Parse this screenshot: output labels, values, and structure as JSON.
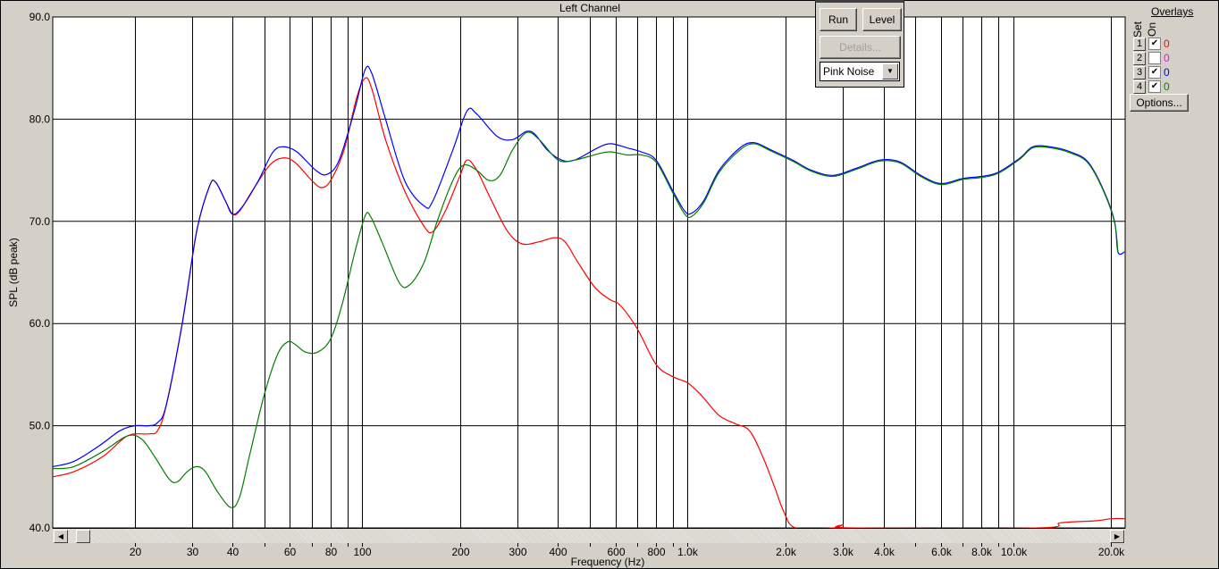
{
  "window": {
    "title": "Left Channel"
  },
  "controls": {
    "run_label": "Run",
    "level_label": "Level",
    "details_label": "Details...",
    "signal_select": "Pink Noise"
  },
  "overlays": {
    "header": "Overlays",
    "set_label": "Set",
    "on_label": "On",
    "options_label": "Options...",
    "rows": [
      {
        "set": "1",
        "on": true,
        "value": "0",
        "color": "#ff0000"
      },
      {
        "set": "2",
        "on": false,
        "value": "0",
        "color": "#ff00ff"
      },
      {
        "set": "3",
        "on": true,
        "value": "0",
        "color": "#0000ff"
      },
      {
        "set": "4",
        "on": true,
        "value": "0",
        "color": "#008000"
      }
    ]
  },
  "chart_data": {
    "type": "line",
    "title": "Left Channel",
    "xlabel": "Frequency (Hz)",
    "ylabel": "SPL (dB peak)",
    "x_scale": "log",
    "xlim": [
      11.2,
      22100
    ],
    "ylim": [
      40,
      90
    ],
    "grid": true,
    "y_ticks": [
      "90.0",
      "80.0",
      "70.0",
      "60.0",
      "50.0",
      "40.0"
    ],
    "x_ticks": [
      {
        "value": 20,
        "label": "20"
      },
      {
        "value": 30,
        "label": "30"
      },
      {
        "value": 40,
        "label": "40"
      },
      {
        "value": 50,
        "label": ""
      },
      {
        "value": 60,
        "label": "60"
      },
      {
        "value": 70,
        "label": ""
      },
      {
        "value": 80,
        "label": "80"
      },
      {
        "value": 90,
        "label": ""
      },
      {
        "value": 100,
        "label": "100"
      },
      {
        "value": 200,
        "label": "200"
      },
      {
        "value": 300,
        "label": "300"
      },
      {
        "value": 400,
        "label": "400"
      },
      {
        "value": 500,
        "label": ""
      },
      {
        "value": 600,
        "label": "600"
      },
      {
        "value": 700,
        "label": ""
      },
      {
        "value": 800,
        "label": "800"
      },
      {
        "value": 900,
        "label": ""
      },
      {
        "value": 1000,
        "label": "1.0k"
      },
      {
        "value": 2000,
        "label": "2.0k"
      },
      {
        "value": 3000,
        "label": "3.0k"
      },
      {
        "value": 4000,
        "label": "4.0k"
      },
      {
        "value": 5000,
        "label": ""
      },
      {
        "value": 6000,
        "label": "6.0k"
      },
      {
        "value": 7000,
        "label": ""
      },
      {
        "value": 8000,
        "label": "8.0k"
      },
      {
        "value": 9000,
        "label": ""
      },
      {
        "value": 10000,
        "label": "10.0k"
      },
      {
        "value": 20000,
        "label": "20.0k"
      }
    ],
    "series": [
      {
        "set": "1",
        "color": "#ff0000",
        "points": [
          [
            11.2,
            45
          ],
          [
            13,
            45.5
          ],
          [
            16,
            47
          ],
          [
            19,
            49
          ],
          [
            22,
            49.2
          ],
          [
            23.5,
            49.5
          ],
          [
            25,
            52
          ],
          [
            28,
            60
          ],
          [
            31,
            69
          ],
          [
            34,
            73.5
          ],
          [
            35.5,
            73.8
          ],
          [
            38,
            72
          ],
          [
            40,
            70.7
          ],
          [
            42,
            71
          ],
          [
            46,
            73
          ],
          [
            52,
            75.5
          ],
          [
            57,
            76.2
          ],
          [
            62,
            75.8
          ],
          [
            70,
            74
          ],
          [
            75,
            73.3
          ],
          [
            80,
            74
          ],
          [
            88,
            77
          ],
          [
            96,
            82
          ],
          [
            102,
            84
          ],
          [
            107,
            83
          ],
          [
            118,
            78
          ],
          [
            135,
            73
          ],
          [
            155,
            69.5
          ],
          [
            165,
            69
          ],
          [
            180,
            71
          ],
          [
            200,
            74.5
          ],
          [
            210,
            76
          ],
          [
            225,
            75
          ],
          [
            250,
            72
          ],
          [
            280,
            69
          ],
          [
            310,
            67.8
          ],
          [
            350,
            68
          ],
          [
            390,
            68.4
          ],
          [
            420,
            68
          ],
          [
            460,
            66
          ],
          [
            520,
            63.5
          ],
          [
            580,
            62.3
          ],
          [
            620,
            61.8
          ],
          [
            700,
            59.5
          ],
          [
            800,
            56
          ],
          [
            900,
            54.8
          ],
          [
            1000,
            54.2
          ],
          [
            1100,
            53
          ],
          [
            1250,
            51
          ],
          [
            1400,
            50.2
          ],
          [
            1550,
            49.5
          ],
          [
            1700,
            47
          ],
          [
            1850,
            44
          ],
          [
            1980,
            41.5
          ],
          [
            2150,
            40
          ],
          [
            2800,
            40
          ],
          [
            3000,
            40.3
          ],
          [
            3200,
            40
          ],
          [
            12000,
            40
          ],
          [
            14000,
            40.5
          ],
          [
            18000,
            40.7
          ],
          [
            20000,
            40.9
          ],
          [
            22000,
            40.9
          ]
        ]
      },
      {
        "set": "3",
        "color": "#0000ff",
        "points": [
          [
            11.2,
            46
          ],
          [
            13,
            46.5
          ],
          [
            15.5,
            48
          ],
          [
            18,
            49.5
          ],
          [
            20,
            50
          ],
          [
            22,
            50
          ],
          [
            23.5,
            50.3
          ],
          [
            25,
            52
          ],
          [
            28,
            60
          ],
          [
            31,
            69
          ],
          [
            34,
            73.5
          ],
          [
            35.5,
            73.8
          ],
          [
            38,
            72
          ],
          [
            40,
            70.7
          ],
          [
            43,
            71.5
          ],
          [
            48,
            74
          ],
          [
            53,
            76.7
          ],
          [
            57,
            77.3
          ],
          [
            63,
            76.8
          ],
          [
            72,
            75
          ],
          [
            78,
            74.6
          ],
          [
            85,
            76
          ],
          [
            95,
            81
          ],
          [
            102,
            84.8
          ],
          [
            107,
            84.5
          ],
          [
            118,
            80
          ],
          [
            135,
            74
          ],
          [
            155,
            71.5
          ],
          [
            165,
            72
          ],
          [
            190,
            77
          ],
          [
            210,
            80.8
          ],
          [
            225,
            80.5
          ],
          [
            260,
            78.3
          ],
          [
            290,
            78
          ],
          [
            320,
            78.8
          ],
          [
            340,
            78.5
          ],
          [
            370,
            77
          ],
          [
            410,
            76
          ],
          [
            450,
            76
          ],
          [
            530,
            77.2
          ],
          [
            580,
            77.6
          ],
          [
            650,
            77.2
          ],
          [
            720,
            76.8
          ],
          [
            800,
            76
          ],
          [
            900,
            73
          ],
          [
            980,
            71
          ],
          [
            1030,
            70.8
          ],
          [
            1120,
            72
          ],
          [
            1250,
            75
          ],
          [
            1450,
            77.2
          ],
          [
            1600,
            77.7
          ],
          [
            1800,
            77
          ],
          [
            2100,
            76
          ],
          [
            2400,
            75
          ],
          [
            2800,
            74.5
          ],
          [
            3300,
            75.2
          ],
          [
            3900,
            76
          ],
          [
            4500,
            75.8
          ],
          [
            5200,
            74.5
          ],
          [
            6000,
            73.7
          ],
          [
            7000,
            74.2
          ],
          [
            8000,
            74.4
          ],
          [
            9000,
            74.8
          ],
          [
            10500,
            76.2
          ],
          [
            11500,
            77.3
          ],
          [
            13000,
            77.3
          ],
          [
            15000,
            76.8
          ],
          [
            17000,
            75.8
          ],
          [
            19000,
            73
          ],
          [
            20500,
            70
          ],
          [
            21000,
            67
          ],
          [
            22000,
            67
          ]
        ]
      },
      {
        "set": "4",
        "color": "#008000",
        "points": [
          [
            11.2,
            45.8
          ],
          [
            13,
            46
          ],
          [
            16,
            47.5
          ],
          [
            19,
            49
          ],
          [
            21,
            48.7
          ],
          [
            23,
            47
          ],
          [
            25.5,
            44.8
          ],
          [
            27,
            44.5
          ],
          [
            29,
            45.5
          ],
          [
            31,
            46
          ],
          [
            33,
            45.5
          ],
          [
            36,
            43.5
          ],
          [
            39.5,
            42
          ],
          [
            42,
            43
          ],
          [
            45,
            47
          ],
          [
            50,
            53
          ],
          [
            55,
            57
          ],
          [
            59,
            58.2
          ],
          [
            62,
            58
          ],
          [
            67,
            57.2
          ],
          [
            73,
            57.2
          ],
          [
            80,
            58.5
          ],
          [
            87,
            62
          ],
          [
            95,
            67
          ],
          [
            102,
            70.5
          ],
          [
            106,
            70.5
          ],
          [
            115,
            68
          ],
          [
            130,
            64
          ],
          [
            140,
            63.8
          ],
          [
            155,
            66
          ],
          [
            170,
            70
          ],
          [
            190,
            74
          ],
          [
            205,
            75.5
          ],
          [
            225,
            75
          ],
          [
            245,
            74
          ],
          [
            265,
            74.5
          ],
          [
            290,
            77
          ],
          [
            320,
            78.7
          ],
          [
            350,
            78
          ],
          [
            400,
            76
          ],
          [
            450,
            76
          ],
          [
            530,
            76.6
          ],
          [
            580,
            76.8
          ],
          [
            650,
            76.5
          ],
          [
            720,
            76.5
          ],
          [
            800,
            75.8
          ],
          [
            900,
            72.8
          ],
          [
            980,
            70.7
          ],
          [
            1030,
            70.5
          ],
          [
            1120,
            71.8
          ],
          [
            1250,
            74.8
          ],
          [
            1450,
            77
          ],
          [
            1600,
            77.6
          ],
          [
            1800,
            76.9
          ],
          [
            2100,
            75.9
          ],
          [
            2400,
            74.9
          ],
          [
            2800,
            74.4
          ],
          [
            3300,
            75.1
          ],
          [
            3900,
            75.9
          ],
          [
            4500,
            75.7
          ],
          [
            5200,
            74.4
          ],
          [
            6000,
            73.6
          ],
          [
            7000,
            74.1
          ],
          [
            8000,
            74.3
          ],
          [
            9000,
            74.7
          ],
          [
            10500,
            76.1
          ],
          [
            11500,
            77.2
          ],
          [
            13000,
            77.2
          ],
          [
            15000,
            76.7
          ],
          [
            17000,
            75.7
          ],
          [
            19000,
            72.9
          ],
          [
            20500,
            69.9
          ],
          [
            21000,
            67
          ]
        ]
      }
    ]
  }
}
